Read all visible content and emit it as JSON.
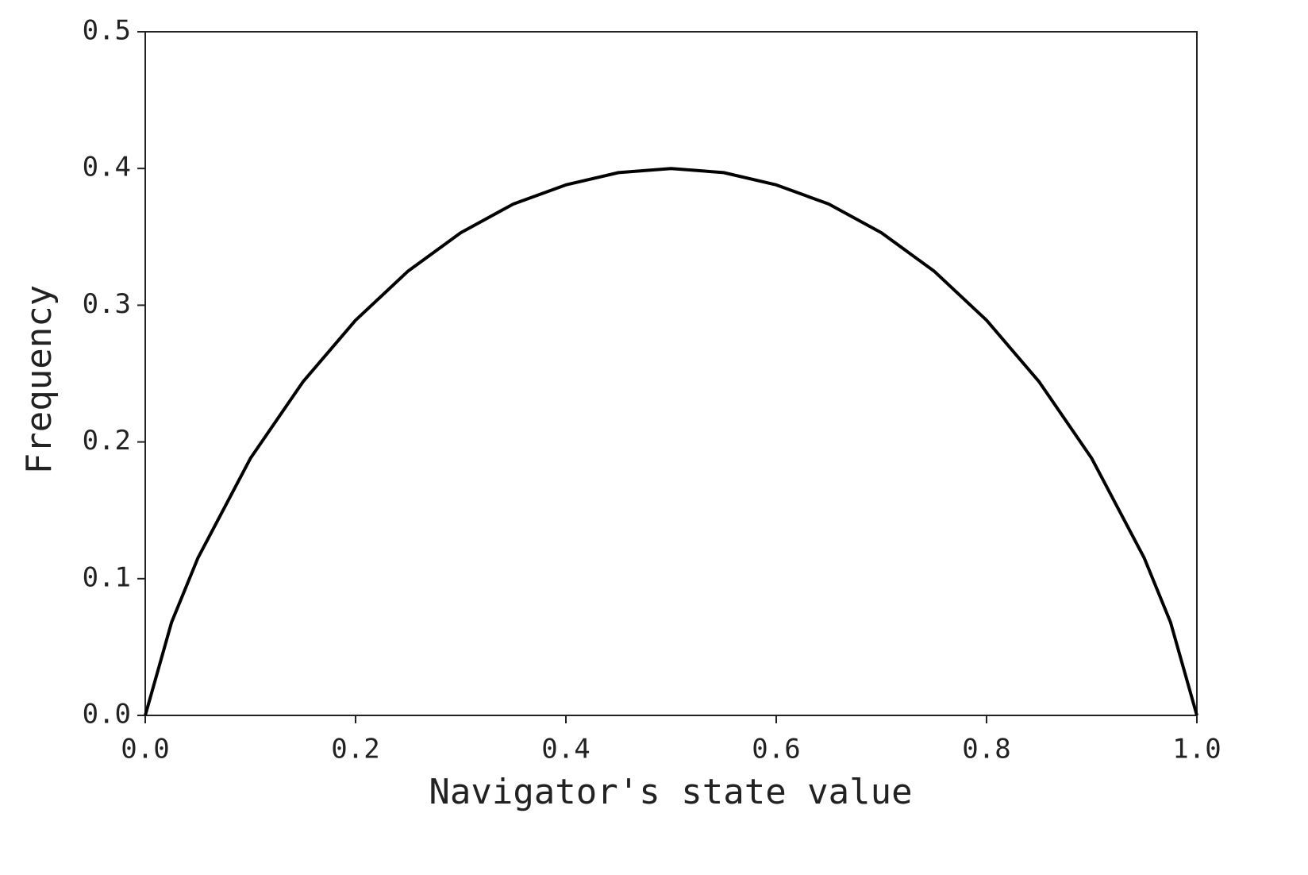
{
  "chart_data": {
    "type": "line",
    "xlabel": "Navigator's state value",
    "ylabel": "Frequency",
    "x": [
      0,
      0.025,
      0.05,
      0.1,
      0.15,
      0.2,
      0.25,
      0.3,
      0.35,
      0.4,
      0.45,
      0.5,
      0.55,
      0.6,
      0.65,
      0.7,
      0.75,
      0.8,
      0.85,
      0.9,
      0.95,
      0.975,
      1
    ],
    "series": [
      {
        "color": "#000000",
        "values": [
          0,
          0.068,
          0.115,
          0.188,
          0.244,
          0.289,
          0.325,
          0.353,
          0.374,
          0.388,
          0.397,
          0.4,
          0.397,
          0.388,
          0.374,
          0.353,
          0.325,
          0.289,
          0.244,
          0.188,
          0.115,
          0.068,
          0
        ]
      }
    ],
    "xlim": [
      0,
      1
    ],
    "ylim": [
      0,
      0.5
    ],
    "xticks": [
      {
        "value": 0,
        "label": "0.0"
      },
      0.2,
      0.4,
      0.6,
      0.8,
      {
        "value": 1,
        "label": "1.0"
      }
    ],
    "yticks": [
      {
        "value": 0,
        "label": "0.0"
      },
      0.1,
      0.2,
      0.3,
      0.4,
      0.5
    ],
    "grid": false
  }
}
